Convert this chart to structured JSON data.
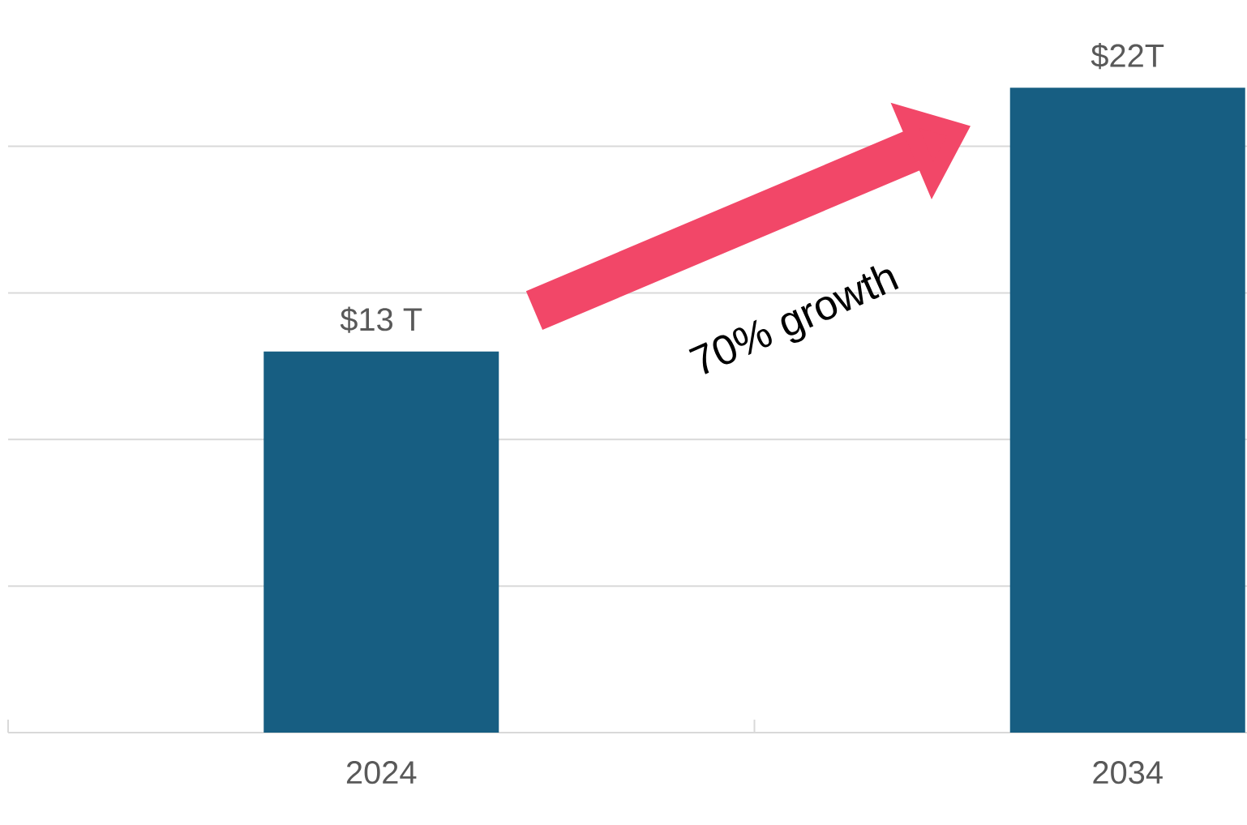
{
  "chart_data": {
    "type": "bar",
    "categories": [
      "2024",
      "2034"
    ],
    "values": [
      13,
      22
    ],
    "value_labels": [
      "$13 T",
      "$22T"
    ],
    "color": "#175e82",
    "yticks": [
      {
        "value": 5,
        "label": null
      },
      {
        "value": 10,
        "label": null
      },
      {
        "value": 15,
        "label": null
      },
      {
        "value": 20,
        "label": null
      }
    ],
    "grid": "y",
    "tick_labels": "x",
    "annotations": [
      "70% growth"
    ]
  }
}
